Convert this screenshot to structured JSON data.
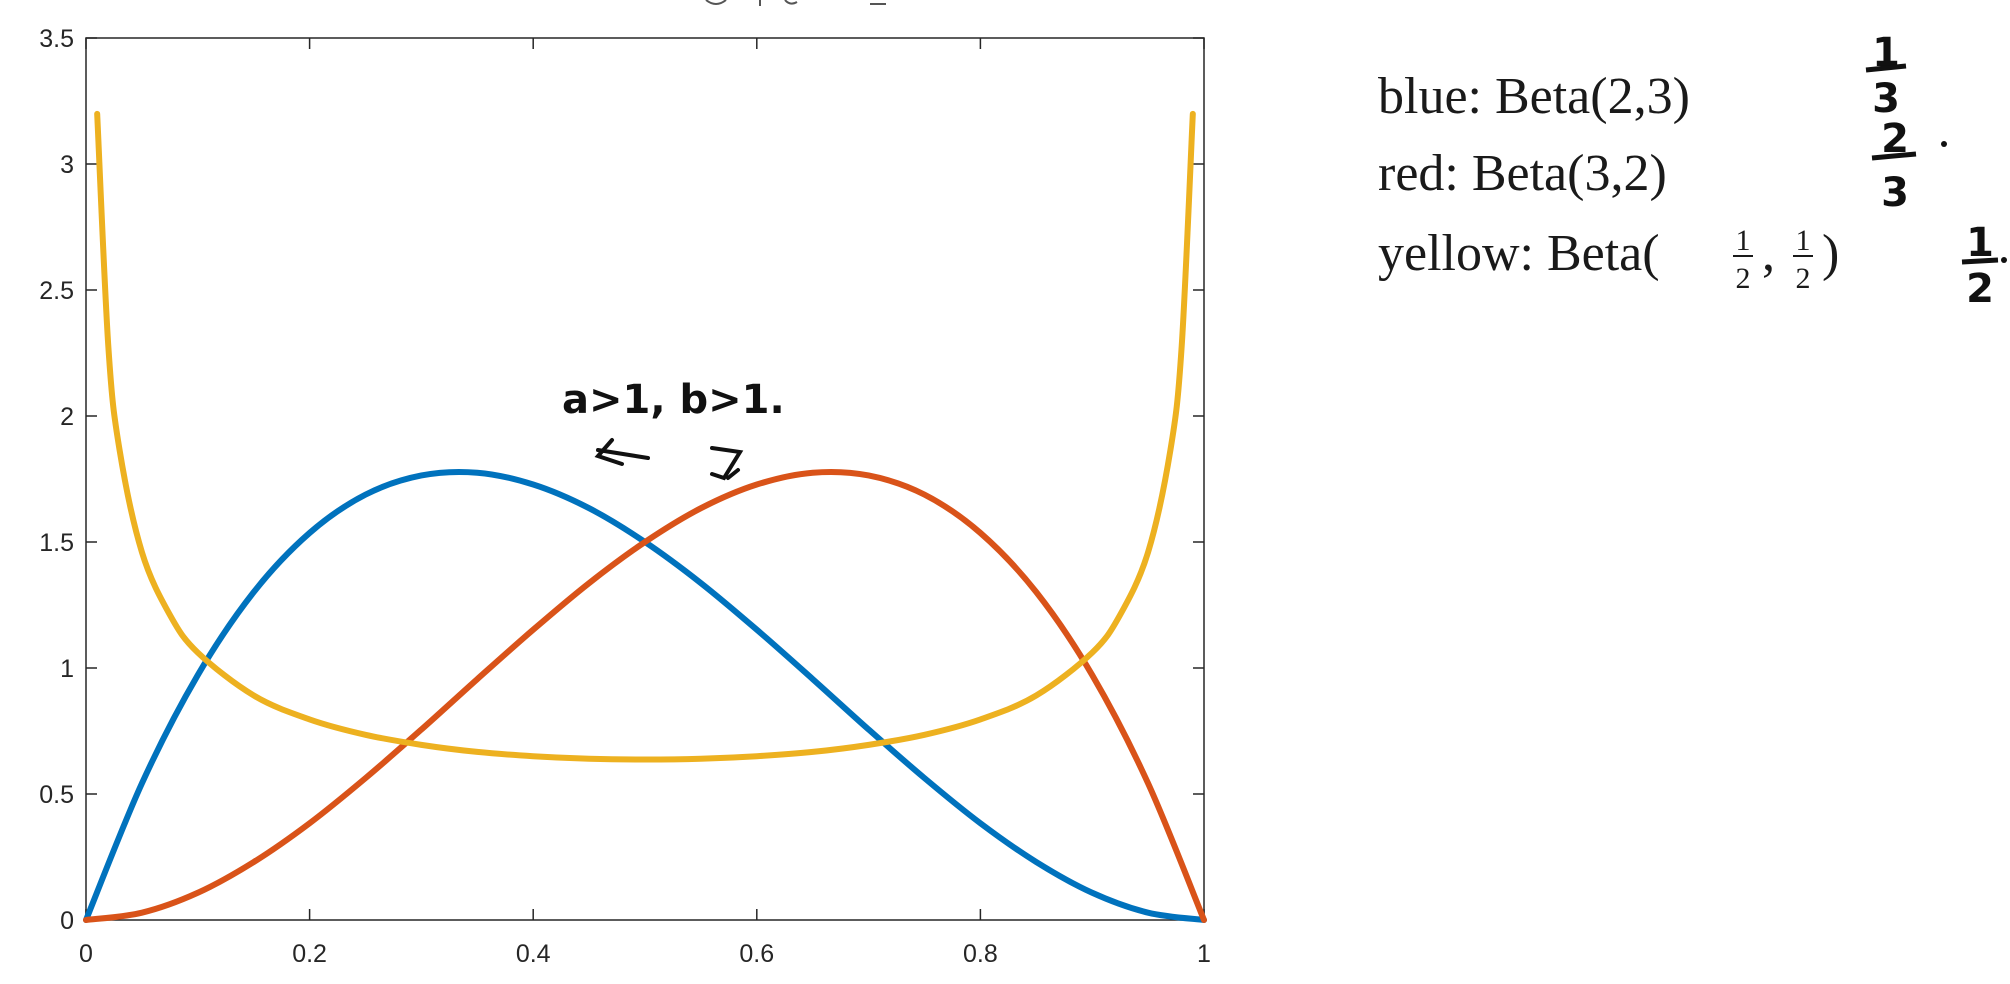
{
  "chart_data": {
    "type": "line",
    "title": "",
    "xlabel": "",
    "ylabel": "",
    "xlim": [
      0,
      1
    ],
    "ylim": [
      0,
      3.5
    ],
    "x_ticks": [
      "0",
      "0.2",
      "0.4",
      "0.6",
      "0.8",
      "1"
    ],
    "y_ticks": [
      "0",
      "0.5",
      "1",
      "1.5",
      "2",
      "2.5",
      "3",
      "3.5"
    ],
    "grid": false,
    "series": [
      {
        "color": "#0072BD",
        "x": [
          0,
          0.05,
          0.1,
          0.15,
          0.2,
          0.25,
          0.3,
          0.35,
          0.4,
          0.45,
          0.5,
          0.55,
          0.6,
          0.65,
          0.7,
          0.75,
          0.8,
          0.85,
          0.9,
          0.95,
          1
        ],
        "y": [
          0,
          0.542,
          0.972,
          1.301,
          1.536,
          1.688,
          1.764,
          1.775,
          1.728,
          1.634,
          1.5,
          1.337,
          1.152,
          0.956,
          0.756,
          0.563,
          0.384,
          0.23,
          0.108,
          0.029,
          0
        ]
      },
      {
        "color": "#D95319",
        "x": [
          0,
          0.05,
          0.1,
          0.15,
          0.2,
          0.25,
          0.3,
          0.35,
          0.4,
          0.45,
          0.5,
          0.55,
          0.6,
          0.65,
          0.7,
          0.75,
          0.8,
          0.85,
          0.9,
          0.95,
          1
        ],
        "y": [
          0,
          0.029,
          0.108,
          0.23,
          0.384,
          0.563,
          0.756,
          0.956,
          1.152,
          1.337,
          1.5,
          1.634,
          1.728,
          1.775,
          1.764,
          1.688,
          1.536,
          1.301,
          0.972,
          0.542,
          0
        ]
      },
      {
        "color": "#EDB120",
        "x": [
          0.01,
          0.02,
          0.03,
          0.05,
          0.075,
          0.1,
          0.15,
          0.2,
          0.25,
          0.3,
          0.35,
          0.4,
          0.45,
          0.5,
          0.55,
          0.6,
          0.65,
          0.7,
          0.75,
          0.8,
          0.85,
          0.9,
          0.925,
          0.95,
          0.97,
          0.98,
          0.99
        ],
        "y": [
          3.199,
          2.274,
          1.866,
          1.46,
          1.211,
          1.061,
          0.891,
          0.796,
          0.735,
          0.695,
          0.667,
          0.65,
          0.64,
          0.637,
          0.64,
          0.65,
          0.667,
          0.695,
          0.735,
          0.796,
          0.891,
          1.061,
          1.211,
          1.46,
          1.866,
          2.274,
          3.199
        ]
      }
    ]
  },
  "legend": {
    "blue_line": "blue: Beta(2,3)",
    "red_line": "red: Beta(3,2)",
    "yellow_prefix": "yellow: Beta(",
    "yellow_num_1": "1",
    "yellow_den_1": "2",
    "yellow_sep": ",",
    "yellow_num_2": "1",
    "yellow_den_2": "2",
    "yellow_suffix": ")"
  },
  "annotations": {
    "condition": "a>1, b>1.",
    "hand_one": "1",
    "hand_three_a": "3",
    "hand_two": "2",
    "hand_three_b": "3",
    "hand_one_b": "1",
    "hand_two_b": "2"
  }
}
